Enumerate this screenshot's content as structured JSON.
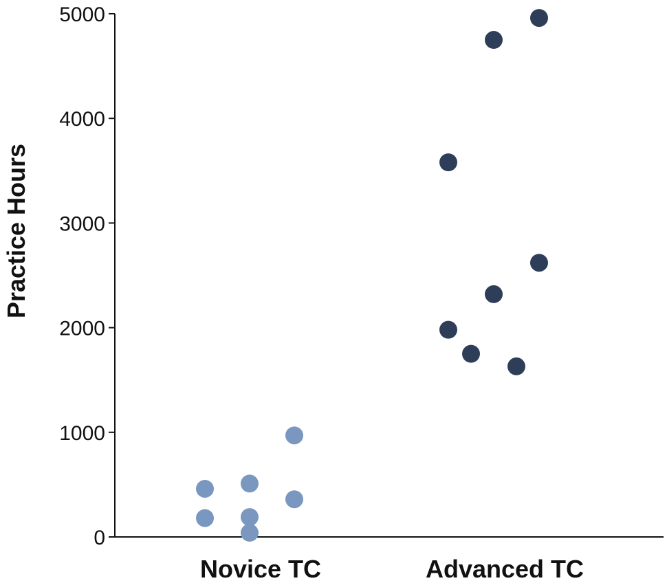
{
  "chart_data": {
    "type": "scatter",
    "title": "",
    "xlabel": "",
    "ylabel": "Practice Hours",
    "ylim": [
      0,
      5000
    ],
    "yticks": [
      0,
      1000,
      2000,
      3000,
      4000,
      5000
    ],
    "categories": [
      "Novice TC",
      "Advanced TC"
    ],
    "grid": false,
    "series": [
      {
        "category": "Novice TC",
        "color": "#7a97bf",
        "points": [
          {
            "jitter": -1,
            "y": 460
          },
          {
            "jitter": -1,
            "y": 180
          },
          {
            "jitter": 0,
            "y": 510
          },
          {
            "jitter": 0,
            "y": 190
          },
          {
            "jitter": 0,
            "y": 40
          },
          {
            "jitter": 1,
            "y": 970
          },
          {
            "jitter": 1,
            "y": 360
          }
        ]
      },
      {
        "category": "Advanced TC",
        "color": "#2e3e58",
        "points": [
          {
            "jitter": -2,
            "y": 3580
          },
          {
            "jitter": -2,
            "y": 1980
          },
          {
            "jitter": -1,
            "y": 1750
          },
          {
            "jitter": 0,
            "y": 4750
          },
          {
            "jitter": 0,
            "y": 2320
          },
          {
            "jitter": 1,
            "y": 1630
          },
          {
            "jitter": 2,
            "y": 4960
          },
          {
            "jitter": 2,
            "y": 2620
          }
        ]
      }
    ]
  }
}
